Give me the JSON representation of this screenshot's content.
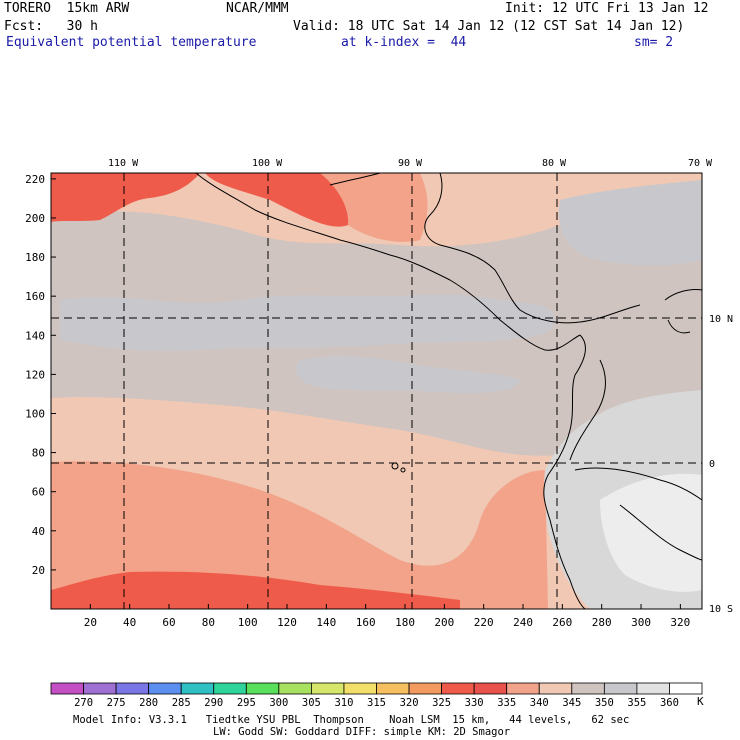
{
  "header": {
    "model": "TORERO  15km ARW",
    "center": "NCAR/MMM",
    "init": "Init: 12 UTC Fri 13 Jan 12",
    "fcst": "Fcst:   30 h",
    "valid": "Valid: 18 UTC Sat 14 Jan 12 (12 CST Sat 14 Jan 12)",
    "field": "Equivalent potential temperature",
    "level": "at k-index =  44",
    "smooth": "sm= 2"
  },
  "map": {
    "lon_labels": [
      "110 W",
      "100 W",
      "90 W",
      "80 W",
      "70 W"
    ],
    "lat_labels": [
      "10 N",
      "0",
      "10 S"
    ],
    "x_ticks": [
      "20",
      "40",
      "60",
      "80",
      "100",
      "120",
      "140",
      "160",
      "180",
      "200",
      "220",
      "240",
      "260",
      "280",
      "300",
      "320"
    ],
    "y_ticks": [
      "220",
      "200",
      "180",
      "160",
      "140",
      "120",
      "100",
      "80",
      "60",
      "40",
      "20"
    ]
  },
  "colorbar": {
    "unit": "K",
    "labels": [
      "270",
      "275",
      "280",
      "285",
      "290",
      "295",
      "300",
      "305",
      "310",
      "315",
      "320",
      "325",
      "330",
      "335",
      "340",
      "345",
      "350",
      "355",
      "360"
    ],
    "colors": [
      "#c44ec4",
      "#9f6fd2",
      "#7b76e6",
      "#5c8ff0",
      "#2fc0c4",
      "#2fd49a",
      "#58e05c",
      "#a8e060",
      "#d6e66a",
      "#f2e06a",
      "#f6c060",
      "#f39a60",
      "#ef5b4a",
      "#e8514c",
      "#f2a38a",
      "#f0c8b4",
      "#d0c4c0",
      "#c8c8cc",
      "#e2e2e2",
      "#ffffff"
    ]
  },
  "footer": {
    "line1": "Model Info: V3.3.1   Tiedtke YSU PBL  Thompson    Noah LSM  15 km,   44 levels,   62 sec",
    "line2": "LW: Godd SW: Goddard DIFF: simple KM: 2D Smagor"
  }
}
